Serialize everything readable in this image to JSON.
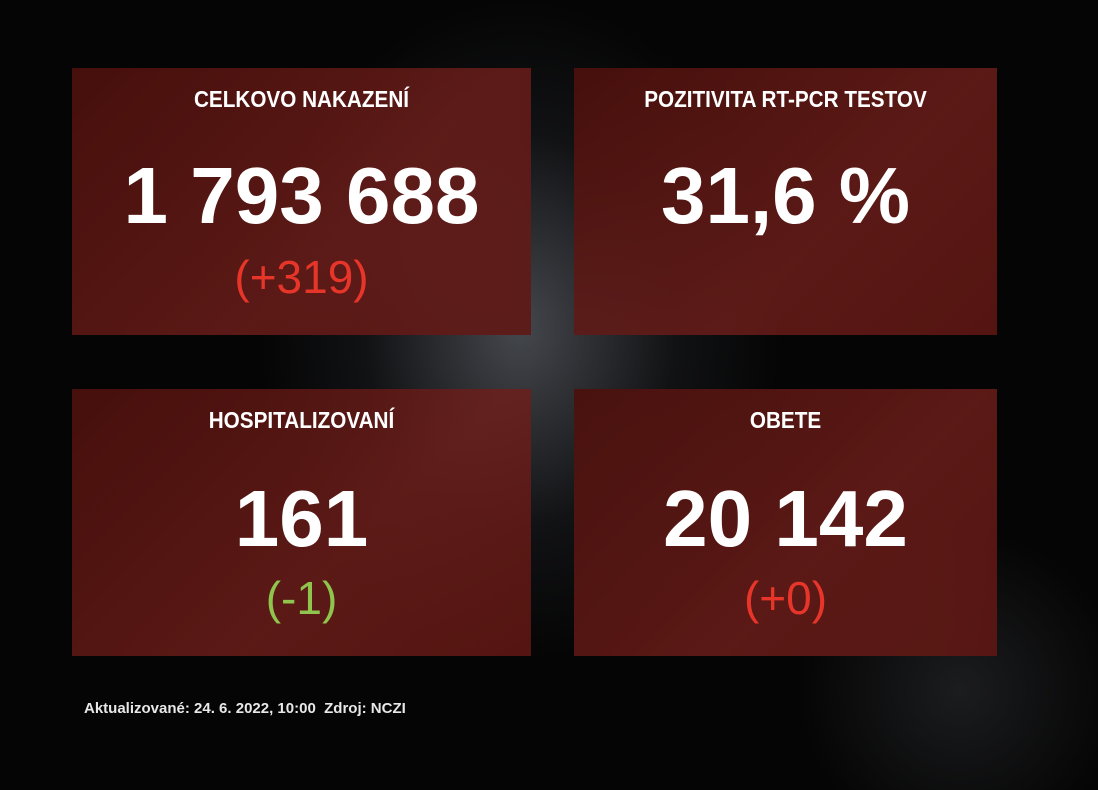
{
  "panels": [
    {
      "title": "CELKOVO NAKAZENÍ",
      "value": "1 793 688",
      "delta": "(+319)"
    },
    {
      "title": "POZITIVITA RT-PCR TESTOV",
      "value": "31,6 %"
    },
    {
      "title": "HOSPITALIZOVANÍ",
      "value": "161",
      "delta": "(-1)"
    },
    {
      "title": "OBETE",
      "value": "20 142",
      "delta": "(+0)"
    }
  ],
  "footer": {
    "updated": "Aktualizované: 24. 6. 2022, 10:00",
    "source": "Zdroj: NCZI"
  },
  "colors": {
    "panel": "#5e1812",
    "increase": "#e8352a",
    "decrease": "#8fc44d",
    "text": "#ffffff"
  }
}
